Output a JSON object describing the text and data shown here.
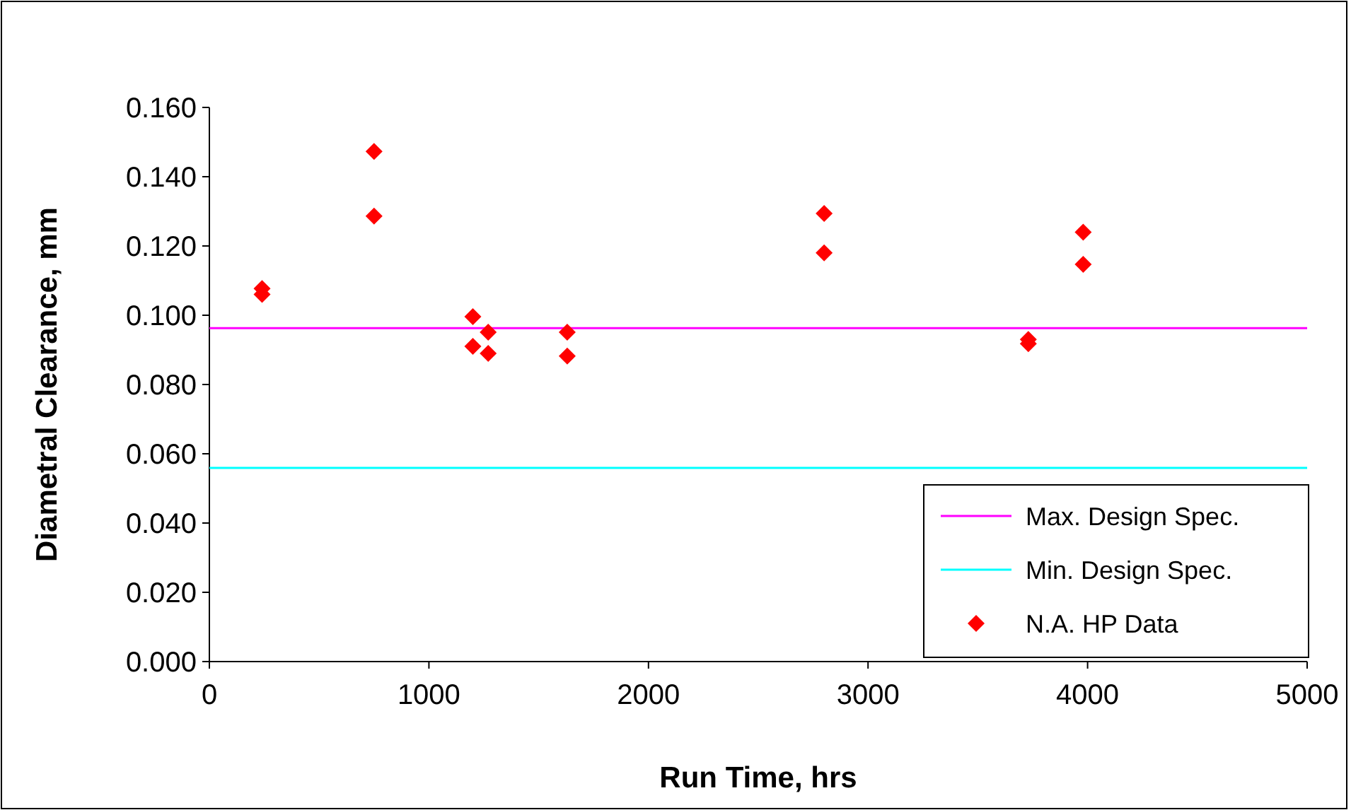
{
  "chart_data": {
    "type": "scatter",
    "xlabel": "Run Time, hrs",
    "ylabel": "Diametral Clearance, mm",
    "xlim": [
      0,
      5000
    ],
    "xticks": [
      0,
      1000,
      2000,
      3000,
      4000,
      5000
    ],
    "ylim": [
      0,
      0.16
    ],
    "yticks": [
      {
        "value": 0,
        "label": "0.000"
      },
      {
        "value": 0.02,
        "label": "0.020"
      },
      {
        "value": 0.04,
        "label": "0.040"
      },
      {
        "value": 0.06,
        "label": "0.060"
      },
      {
        "value": 0.08,
        "label": "0.080"
      },
      {
        "value": 0.1,
        "label": "0.100"
      },
      {
        "value": 0.12,
        "label": "0.120"
      },
      {
        "value": 0.14,
        "label": "0.140"
      },
      {
        "value": 0.16,
        "label": "0.160"
      }
    ],
    "grid": false,
    "legend": "bottom right",
    "series": [
      {
        "name": "Max. Design Spec.",
        "type": "line",
        "color": "#ff00ff",
        "marker": "none",
        "x": [
          0,
          5000
        ],
        "values": [
          0.0963,
          0.0963
        ]
      },
      {
        "name": "Min. Design Spec.",
        "type": "line",
        "color": "#00ffff",
        "marker": "none",
        "x": [
          0,
          5000
        ],
        "values": [
          0.0559,
          0.0559
        ]
      },
      {
        "name": "N.A. HP Data",
        "color": "#ff0000",
        "marker": "diamond",
        "x": [
          240,
          240,
          750,
          750,
          1200,
          1200,
          1270,
          1270,
          1630,
          1630,
          2800,
          2800,
          3730,
          3730,
          3980,
          3980
        ],
        "values": [
          0.1077,
          0.106,
          0.1473,
          0.1286,
          0.0996,
          0.091,
          0.0951,
          0.089,
          0.0951,
          0.0882,
          0.1294,
          0.118,
          0.093,
          0.0918,
          0.124,
          0.1147
        ]
      }
    ]
  }
}
